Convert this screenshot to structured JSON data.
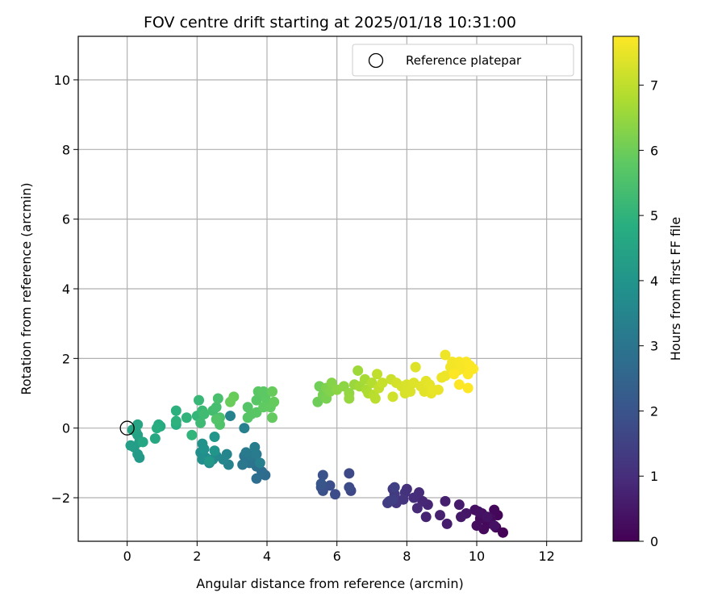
{
  "chart_data": {
    "type": "scatter",
    "title": "FOV centre drift starting at 2025/01/18 10:31:00",
    "xlabel": "Angular distance from reference (arcmin)",
    "ylabel": "Rotation from reference (arcmin)",
    "xlim": [
      -1.4,
      13.0
    ],
    "ylim": [
      -3.25,
      11.25
    ],
    "xticks": [
      0,
      2,
      4,
      6,
      8,
      10,
      12
    ],
    "yticks": [
      -2,
      0,
      2,
      4,
      6,
      8,
      10
    ],
    "xtick_labels": [
      "0",
      "2",
      "4",
      "6",
      "8",
      "10",
      "12"
    ],
    "ytick_labels": [
      "−2",
      "0",
      "2",
      "4",
      "6",
      "8",
      "10"
    ],
    "grid": true,
    "legend": {
      "position": "top-right",
      "entries": [
        "Reference platepar"
      ]
    },
    "reference_point": {
      "x": 0,
      "y": 0,
      "label": "Reference platepar"
    },
    "colorbar": {
      "label": "Hours from first FF file",
      "colormap": "viridis",
      "range": [
        0,
        7.75
      ],
      "ticks": [
        0,
        1,
        2,
        3,
        4,
        5,
        6,
        7
      ],
      "tick_labels": [
        "0",
        "1",
        "2",
        "3",
        "4",
        "5",
        "6",
        "7"
      ]
    },
    "points_c": [
      [
        10.75,
        -3.0,
        0.05
      ],
      [
        10.55,
        -2.85,
        0.1
      ],
      [
        10.6,
        -2.5,
        0.12
      ],
      [
        10.5,
        -2.35,
        0.15
      ],
      [
        10.3,
        -2.75,
        0.18
      ],
      [
        10.2,
        -2.9,
        0.2
      ],
      [
        10.4,
        -2.6,
        0.22
      ],
      [
        10.1,
        -2.6,
        0.25
      ],
      [
        10.0,
        -2.8,
        0.28
      ],
      [
        10.15,
        -2.45,
        0.3
      ],
      [
        9.95,
        -2.35,
        0.33
      ],
      [
        10.05,
        -2.4,
        0.35
      ],
      [
        10.5,
        -2.8,
        0.38
      ],
      [
        10.3,
        -2.55,
        0.4
      ],
      [
        9.7,
        -2.45,
        0.45
      ],
      [
        9.55,
        -2.55,
        0.5
      ],
      [
        9.5,
        -2.2,
        0.55
      ],
      [
        9.15,
        -2.75,
        0.6
      ],
      [
        9.1,
        -2.1,
        0.65
      ],
      [
        8.95,
        -2.5,
        0.7
      ],
      [
        8.55,
        -2.55,
        0.75
      ],
      [
        8.6,
        -2.2,
        0.8
      ],
      [
        8.45,
        -2.1,
        0.85
      ],
      [
        8.3,
        -2.3,
        0.9
      ],
      [
        8.35,
        -1.85,
        0.95
      ],
      [
        8.2,
        -2.0,
        1.0
      ],
      [
        8.0,
        -1.75,
        1.05
      ],
      [
        7.95,
        -1.85,
        1.1
      ],
      [
        7.9,
        -2.05,
        1.15
      ],
      [
        7.7,
        -2.15,
        1.2
      ],
      [
        7.6,
        -1.75,
        1.25
      ],
      [
        7.65,
        -1.9,
        1.3
      ],
      [
        7.5,
        -2.1,
        1.35
      ],
      [
        7.45,
        -2.15,
        1.4
      ],
      [
        7.6,
        -2.05,
        1.45
      ],
      [
        7.65,
        -1.7,
        1.5
      ],
      [
        6.4,
        -1.8,
        1.65
      ],
      [
        6.35,
        -1.3,
        1.7
      ],
      [
        6.35,
        -1.7,
        1.75
      ],
      [
        5.95,
        -1.9,
        1.8
      ],
      [
        5.8,
        -1.65,
        1.85
      ],
      [
        5.6,
        -1.8,
        1.9
      ],
      [
        5.55,
        -1.7,
        1.95
      ],
      [
        5.6,
        -1.35,
        2.0
      ],
      [
        5.55,
        -1.6,
        2.05
      ],
      [
        3.95,
        -1.35,
        2.7
      ],
      [
        3.85,
        -1.25,
        2.75
      ],
      [
        3.7,
        -1.45,
        2.8
      ],
      [
        3.7,
        -1.1,
        2.85
      ],
      [
        3.65,
        -0.95,
        2.9
      ],
      [
        3.5,
        -1.0,
        2.95
      ],
      [
        3.35,
        -0.8,
        3.0
      ],
      [
        3.3,
        -1.05,
        3.05
      ],
      [
        3.55,
        -0.8,
        3.1
      ],
      [
        3.4,
        -0.7,
        3.15
      ],
      [
        3.7,
        -0.75,
        3.2
      ],
      [
        3.65,
        -0.55,
        3.25
      ],
      [
        3.8,
        -1.0,
        3.3
      ],
      [
        3.35,
        0.0,
        3.35
      ],
      [
        2.95,
        0.35,
        3.4
      ],
      [
        2.9,
        -1.05,
        3.45
      ],
      [
        2.85,
        -0.75,
        3.5
      ],
      [
        2.75,
        -0.9,
        3.55
      ],
      [
        2.55,
        -0.8,
        3.6
      ],
      [
        2.45,
        -0.9,
        3.65
      ],
      [
        2.35,
        -1.0,
        3.7
      ],
      [
        2.25,
        -0.85,
        3.75
      ],
      [
        2.15,
        -0.9,
        3.8
      ],
      [
        2.1,
        -0.7,
        3.85
      ],
      [
        2.2,
        -0.6,
        3.9
      ],
      [
        2.15,
        -0.45,
        3.95
      ],
      [
        2.5,
        -0.65,
        4.0
      ],
      [
        2.5,
        -0.25,
        4.05
      ],
      [
        2.35,
        -0.95,
        4.1
      ],
      [
        0.35,
        -0.85,
        4.15
      ],
      [
        0.3,
        -0.75,
        4.2
      ],
      [
        0.2,
        -0.55,
        4.25
      ],
      [
        0.1,
        -0.5,
        4.3
      ],
      [
        0.35,
        -0.4,
        4.35
      ],
      [
        0.3,
        -0.2,
        4.4
      ],
      [
        0.25,
        -0.1,
        4.45
      ],
      [
        0.3,
        0.1,
        4.5
      ],
      [
        0.15,
        -0.05,
        4.55
      ],
      [
        0.45,
        -0.4,
        4.6
      ],
      [
        0.8,
        -0.3,
        4.65
      ],
      [
        0.95,
        0.05,
        4.7
      ],
      [
        0.9,
        0.1,
        4.75
      ],
      [
        0.85,
        0.0,
        4.8
      ],
      [
        1.4,
        0.1,
        4.85
      ],
      [
        1.4,
        0.5,
        4.9
      ],
      [
        1.4,
        0.2,
        4.95
      ],
      [
        1.7,
        0.3,
        5.0
      ],
      [
        1.85,
        -0.2,
        5.05
      ],
      [
        2.0,
        0.35,
        5.1
      ],
      [
        2.05,
        0.8,
        5.15
      ],
      [
        2.15,
        0.5,
        5.2
      ],
      [
        2.1,
        0.15,
        5.25
      ],
      [
        2.2,
        0.4,
        5.3
      ],
      [
        2.45,
        0.5,
        5.35
      ],
      [
        2.55,
        0.6,
        5.4
      ],
      [
        2.6,
        0.85,
        5.45
      ],
      [
        2.65,
        0.3,
        5.5
      ],
      [
        2.65,
        0.1,
        5.55
      ],
      [
        2.55,
        0.25,
        5.6
      ],
      [
        3.45,
        0.6,
        5.62
      ],
      [
        3.45,
        0.3,
        5.65
      ],
      [
        3.55,
        0.4,
        5.68
      ],
      [
        3.7,
        0.45,
        5.7
      ],
      [
        3.7,
        0.8,
        5.72
      ],
      [
        3.75,
        1.05,
        5.74
      ],
      [
        3.9,
        1.05,
        5.76
      ],
      [
        3.95,
        0.9,
        5.78
      ],
      [
        4.0,
        0.75,
        5.8
      ],
      [
        3.9,
        0.6,
        5.82
      ],
      [
        4.1,
        0.6,
        5.85
      ],
      [
        4.15,
        0.3,
        5.88
      ],
      [
        4.2,
        0.75,
        5.9
      ],
      [
        4.15,
        1.05,
        5.92
      ],
      [
        3.05,
        0.9,
        5.94
      ],
      [
        2.95,
        0.75,
        5.96
      ],
      [
        5.45,
        0.75,
        6.0
      ],
      [
        5.5,
        1.2,
        6.05
      ],
      [
        5.6,
        0.95,
        6.1
      ],
      [
        5.7,
        0.85,
        6.15
      ],
      [
        5.7,
        1.15,
        6.2
      ],
      [
        5.8,
        1.05,
        6.25
      ],
      [
        5.85,
        1.3,
        6.3
      ],
      [
        6.0,
        1.1,
        6.35
      ],
      [
        6.2,
        1.2,
        6.4
      ],
      [
        6.35,
        1.0,
        6.45
      ],
      [
        6.35,
        0.85,
        6.5
      ],
      [
        6.5,
        1.25,
        6.55
      ],
      [
        6.6,
        1.65,
        6.6
      ],
      [
        6.65,
        1.2,
        6.65
      ],
      [
        6.8,
        1.4,
        6.7
      ],
      [
        6.85,
        1.1,
        6.75
      ],
      [
        6.9,
        1.0,
        6.8
      ],
      [
        7.0,
        1.3,
        6.85
      ],
      [
        7.05,
        0.95,
        6.9
      ],
      [
        7.1,
        0.85,
        6.95
      ],
      [
        7.15,
        1.55,
        7.0
      ],
      [
        7.2,
        1.15,
        7.05
      ],
      [
        7.3,
        1.3,
        7.1
      ],
      [
        7.55,
        1.4,
        7.15
      ],
      [
        7.6,
        0.9,
        7.2
      ],
      [
        7.7,
        1.3,
        7.25
      ],
      [
        7.85,
        1.2,
        7.28
      ],
      [
        7.95,
        1.0,
        7.3
      ],
      [
        8.0,
        1.25,
        7.32
      ],
      [
        8.1,
        1.05,
        7.34
      ],
      [
        8.2,
        1.3,
        7.36
      ],
      [
        8.25,
        1.75,
        7.38
      ],
      [
        8.4,
        1.2,
        7.4
      ],
      [
        8.5,
        1.05,
        7.42
      ],
      [
        8.55,
        1.35,
        7.44
      ],
      [
        8.65,
        1.25,
        7.46
      ],
      [
        8.7,
        1.0,
        7.48
      ],
      [
        8.75,
        1.1,
        7.5
      ],
      [
        8.9,
        1.1,
        7.52
      ],
      [
        9.0,
        1.45,
        7.54
      ],
      [
        9.1,
        1.5,
        7.56
      ],
      [
        9.1,
        2.1,
        7.58
      ],
      [
        9.25,
        1.75,
        7.6
      ],
      [
        9.3,
        1.9,
        7.62
      ],
      [
        9.45,
        1.65,
        7.64
      ],
      [
        9.5,
        1.9,
        7.66
      ],
      [
        9.6,
        1.7,
        7.68
      ],
      [
        9.7,
        1.9,
        7.7
      ],
      [
        9.75,
        1.55,
        7.72
      ],
      [
        9.8,
        1.8,
        7.73
      ],
      [
        9.9,
        1.7,
        7.74
      ],
      [
        9.5,
        1.25,
        7.75
      ],
      [
        9.75,
        1.15,
        7.75
      ],
      [
        9.35,
        1.55,
        7.75
      ]
    ]
  }
}
